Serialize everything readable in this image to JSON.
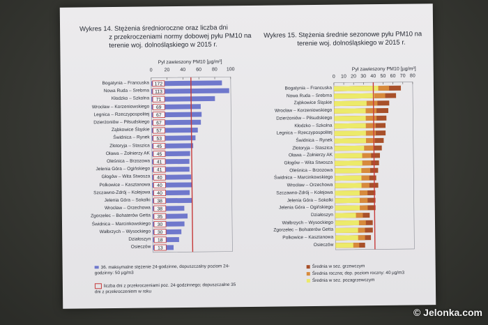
{
  "watermark": "© Jelonka.com",
  "chart_data": [
    {
      "type": "bar",
      "title_line1": "Wykres 14. Stężenia średnioroczne oraz liczba dni",
      "title_line2": "z przekroczeniami normy dobowej  pyłu PM10 na",
      "title_line3": "terenie woj. dolnośląskiego w 2015 r.",
      "xlabel": "Pył zawieszony PM10 [µg/m³]",
      "ticks": [
        "0",
        "20",
        "40",
        "60",
        "80",
        "100"
      ],
      "xlim": [
        0,
        100
      ],
      "limit_line": 50,
      "categories": [
        "Bogatynia – Francuska",
        "Nowa Ruda – Srebrna",
        "Kłodzko – Szkolna",
        "Wrocław – Korzeniowskiego",
        "Legnica – Rzeczypospolitej",
        "Dzierżoniów – Piłsudskiego",
        "Ząbkowice Śląskie",
        "Świdnica – Rynek",
        "Złotoryja – Staszica",
        "Oława – Żołnierzy AK",
        "Oleśnica – Brzozowa",
        "Jelenia Góra – Ogińskiego",
        "Głogów – Wita Stwosza",
        "Polkowice – Kasztanowa",
        "Szczawno-Zdrój – Kolejowa",
        "Jelenia Góra – Sokolki",
        "Wrocław – Orzechowa",
        "Zgorzelec – Bohaterów Getta",
        "Świdnica – Marcinkowskiego",
        "Wałbrzych – Wysockiego",
        "Działoszyn",
        "Osieczów"
      ],
      "series": [
        {
          "values": [
            89,
            98,
            80,
            62,
            63,
            62,
            58,
            55,
            52,
            48,
            47,
            47,
            49,
            50,
            47,
            50,
            40,
            44,
            40,
            36,
            33,
            26
          ]
        }
      ],
      "days": [
        "172",
        "113",
        "71",
        "69",
        "67",
        "67",
        "57",
        "53",
        "45",
        "45",
        "41",
        "41",
        "40",
        "40",
        "40",
        "38",
        "38",
        "35",
        "30",
        "30",
        "18",
        "13"
      ],
      "legend": [
        {
          "label": "36. maksymalne stężenie 24-godzinne, dopuszczalny poziom 24-godzinny: 50 µg/m3",
          "color": "#6f78cc"
        },
        {
          "label": "liczba dni z przekroczeniami poz. 24-godzinnego; dopuszczalne 35 dni z przekroczeniem w roku",
          "color": "#c63a3a"
        }
      ]
    },
    {
      "type": "bar",
      "title_line1": "Wykres 15. Stężenia średnie sezonowe pyłu PM10 na",
      "title_line2": "terenie woj. dolnośląskiego w 2015 r.",
      "xlabel": "Pył zawieszony PM10 [µg/m³]",
      "ticks": [
        "0",
        "10",
        "20",
        "30",
        "40",
        "50",
        "60",
        "70",
        "80"
      ],
      "xlim": [
        0,
        80
      ],
      "limit_line": 40,
      "categories": [
        "Bogatynia – Francuska",
        "Nowa Ruda – Srebrna",
        "Ząbkowice Śląskie",
        "Wrocław – Korzeniowskiego",
        "Dzierżoniów – Piłsudskiego",
        "Kłodzko – Szkolna",
        "Legnica – Rzeczypospolitej",
        "Świdnica – Rynek",
        "Złotoryja – Staszica",
        "Oława – Żołnierzy AK",
        "Głogów – Wita Stwosza",
        "Oleśnica – Brzozowa",
        "Świdnica – Marcinkowskiego",
        "Wrocław – Orzechowa",
        "Szczawno-Zdrój – Kolejowa",
        "Jelenia Góra – Sokolki",
        "Jelenia Góra – Ogińskiego",
        "Działoszyn",
        "Wałbrzych – Wysockiego",
        "Zgorzelec – Bohaterów Getta",
        "Polkowice – Kasztanowa",
        "Osieczów"
      ],
      "series": [
        {
          "name": "Średnia w sez. grzewczym",
          "values": [
            68,
            63,
            56,
            55,
            53,
            52,
            52,
            50,
            48,
            46,
            45,
            44,
            42,
            44,
            41,
            41,
            41,
            35,
            38,
            38,
            36,
            30
          ]
        },
        {
          "name": "Średnia roczna; dop. poziom roczny: 40 µg/m3",
          "values": [
            56,
            52,
            44,
            43,
            43,
            42,
            42,
            41,
            40,
            37,
            37,
            36,
            35,
            35,
            33,
            33,
            33,
            28,
            31,
            30,
            30,
            24
          ]
        },
        {
          "name": "Średnia w sez. pozagrzewczym",
          "values": [
            45,
            41,
            33,
            32,
            32,
            32,
            32,
            32,
            30,
            28,
            28,
            27,
            27,
            27,
            25,
            25,
            25,
            21,
            24,
            23,
            23,
            18
          ]
        }
      ],
      "colors": [
        "#a8502a",
        "#d78a3c",
        "#ecea6a"
      ]
    }
  ]
}
